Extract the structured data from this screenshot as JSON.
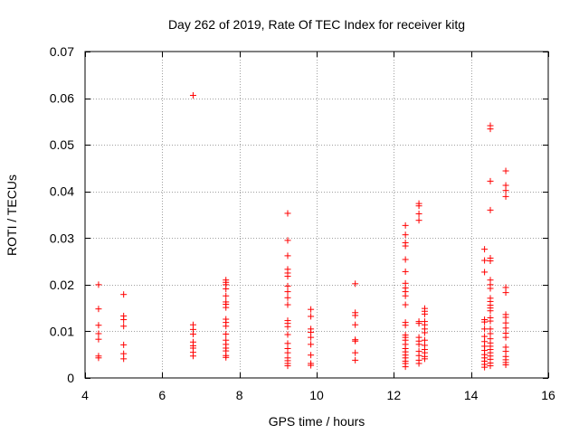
{
  "chart_data": {
    "type": "scatter",
    "title": "Day 262 of 2019, Rate Of TEC Index for receiver kitg",
    "xlabel": "GPS time / hours",
    "ylabel": "ROTI / TECUs",
    "xlim": [
      4,
      16
    ],
    "ylim": [
      0,
      0.07
    ],
    "xticks": [
      4,
      6,
      8,
      10,
      12,
      14,
      16
    ],
    "yticks": [
      0,
      0.01,
      0.02,
      0.03,
      0.04,
      0.05,
      0.06,
      0.07
    ],
    "xtick_labels": [
      "4",
      "6",
      "8",
      "10",
      "12",
      "14",
      "16"
    ],
    "ytick_labels": [
      "0",
      "0.01",
      "0.02",
      "0.03",
      "0.04",
      "0.05",
      "0.06",
      "0.07"
    ],
    "grid": true,
    "marker": "+",
    "color": "#ff0000",
    "series": [
      {
        "name": "ROTI",
        "points": [
          [
            4.35,
            0.02
          ],
          [
            4.35,
            0.0148
          ],
          [
            4.35,
            0.0113
          ],
          [
            4.35,
            0.0095
          ],
          [
            4.35,
            0.0083
          ],
          [
            4.35,
            0.0047
          ],
          [
            4.35,
            0.0043
          ],
          [
            5.0,
            0.0179
          ],
          [
            5.0,
            0.0133
          ],
          [
            5.0,
            0.0125
          ],
          [
            5.0,
            0.0111
          ],
          [
            5.0,
            0.0071
          ],
          [
            5.0,
            0.0052
          ],
          [
            5.0,
            0.0041
          ],
          [
            6.8,
            0.0606
          ],
          [
            6.8,
            0.0114
          ],
          [
            6.8,
            0.0104
          ],
          [
            6.8,
            0.0094
          ],
          [
            6.8,
            0.0077
          ],
          [
            6.8,
            0.0069
          ],
          [
            6.8,
            0.0064
          ],
          [
            6.8,
            0.0055
          ],
          [
            6.8,
            0.0047
          ],
          [
            7.65,
            0.021
          ],
          [
            7.65,
            0.0205
          ],
          [
            7.65,
            0.02
          ],
          [
            7.65,
            0.0191
          ],
          [
            7.65,
            0.0176
          ],
          [
            7.65,
            0.0163
          ],
          [
            7.65,
            0.0158
          ],
          [
            7.65,
            0.0151
          ],
          [
            7.65,
            0.0126
          ],
          [
            7.65,
            0.0119
          ],
          [
            7.65,
            0.0111
          ],
          [
            7.65,
            0.0094
          ],
          [
            7.65,
            0.0081
          ],
          [
            7.65,
            0.0072
          ],
          [
            7.65,
            0.0064
          ],
          [
            7.65,
            0.0058
          ],
          [
            7.65,
            0.0048
          ],
          [
            7.65,
            0.0044
          ],
          [
            9.25,
            0.0353
          ],
          [
            9.25,
            0.0295
          ],
          [
            9.25,
            0.0262
          ],
          [
            9.25,
            0.0233
          ],
          [
            9.25,
            0.0225
          ],
          [
            9.25,
            0.0218
          ],
          [
            9.25,
            0.0197
          ],
          [
            9.25,
            0.0185
          ],
          [
            9.25,
            0.0172
          ],
          [
            9.25,
            0.0157
          ],
          [
            9.25,
            0.0123
          ],
          [
            9.25,
            0.0117
          ],
          [
            9.25,
            0.011
          ],
          [
            9.25,
            0.0093
          ],
          [
            9.25,
            0.0074
          ],
          [
            9.25,
            0.0063
          ],
          [
            9.25,
            0.0054
          ],
          [
            9.25,
            0.0043
          ],
          [
            9.25,
            0.0037
          ],
          [
            9.25,
            0.0031
          ],
          [
            9.25,
            0.0026
          ],
          [
            9.85,
            0.0147
          ],
          [
            9.85,
            0.0132
          ],
          [
            9.85,
            0.0105
          ],
          [
            9.85,
            0.0098
          ],
          [
            9.85,
            0.0087
          ],
          [
            9.85,
            0.0072
          ],
          [
            9.85,
            0.0049
          ],
          [
            9.85,
            0.0031
          ],
          [
            9.85,
            0.0027
          ],
          [
            11.0,
            0.0202
          ],
          [
            11.0,
            0.014
          ],
          [
            11.0,
            0.0134
          ],
          [
            11.0,
            0.0114
          ],
          [
            11.0,
            0.0082
          ],
          [
            11.0,
            0.0079
          ],
          [
            11.0,
            0.0054
          ],
          [
            11.0,
            0.0038
          ],
          [
            12.3,
            0.0327
          ],
          [
            12.3,
            0.0307
          ],
          [
            12.3,
            0.029
          ],
          [
            12.3,
            0.0283
          ],
          [
            12.3,
            0.0254
          ],
          [
            12.3,
            0.0228
          ],
          [
            12.3,
            0.0203
          ],
          [
            12.3,
            0.0193
          ],
          [
            12.3,
            0.0185
          ],
          [
            12.3,
            0.0176
          ],
          [
            12.3,
            0.0157
          ],
          [
            12.3,
            0.0119
          ],
          [
            12.3,
            0.0113
          ],
          [
            12.3,
            0.0092
          ],
          [
            12.3,
            0.0087
          ],
          [
            12.3,
            0.0081
          ],
          [
            12.3,
            0.0072
          ],
          [
            12.3,
            0.0063
          ],
          [
            12.3,
            0.0056
          ],
          [
            12.3,
            0.0049
          ],
          [
            12.3,
            0.0043
          ],
          [
            12.3,
            0.0036
          ],
          [
            12.3,
            0.0031
          ],
          [
            12.3,
            0.0024
          ],
          [
            12.65,
            0.0374
          ],
          [
            12.65,
            0.0369
          ],
          [
            12.65,
            0.0352
          ],
          [
            12.65,
            0.0338
          ],
          [
            12.65,
            0.0121
          ],
          [
            12.65,
            0.0117
          ],
          [
            12.65,
            0.0087
          ],
          [
            12.65,
            0.0079
          ],
          [
            12.65,
            0.0072
          ],
          [
            12.65,
            0.0057
          ],
          [
            12.65,
            0.0048
          ],
          [
            12.65,
            0.0038
          ],
          [
            12.65,
            0.0031
          ],
          [
            12.8,
            0.0149
          ],
          [
            12.8,
            0.0143
          ],
          [
            12.8,
            0.0137
          ],
          [
            12.8,
            0.0121
          ],
          [
            12.8,
            0.0114
          ],
          [
            12.8,
            0.0105
          ],
          [
            12.8,
            0.0097
          ],
          [
            12.8,
            0.0081
          ],
          [
            12.8,
            0.007
          ],
          [
            12.8,
            0.0061
          ],
          [
            12.8,
            0.0054
          ],
          [
            12.8,
            0.0046
          ],
          [
            12.8,
            0.0041
          ],
          [
            14.35,
            0.0276
          ],
          [
            14.35,
            0.0252
          ],
          [
            14.35,
            0.0227
          ],
          [
            14.35,
            0.0125
          ],
          [
            14.35,
            0.012
          ],
          [
            14.35,
            0.0105
          ],
          [
            14.35,
            0.0089
          ],
          [
            14.35,
            0.0078
          ],
          [
            14.35,
            0.0068
          ],
          [
            14.35,
            0.0059
          ],
          [
            14.35,
            0.005
          ],
          [
            14.35,
            0.0043
          ],
          [
            14.35,
            0.0036
          ],
          [
            14.35,
            0.0029
          ],
          [
            14.35,
            0.0023
          ],
          [
            14.5,
            0.0541
          ],
          [
            14.5,
            0.0534
          ],
          [
            14.5,
            0.0422
          ],
          [
            14.5,
            0.036
          ],
          [
            14.5,
            0.0257
          ],
          [
            14.5,
            0.0251
          ],
          [
            14.5,
            0.021
          ],
          [
            14.5,
            0.02
          ],
          [
            14.5,
            0.0192
          ],
          [
            14.5,
            0.0171
          ],
          [
            14.5,
            0.0164
          ],
          [
            14.5,
            0.0156
          ],
          [
            14.5,
            0.015
          ],
          [
            14.5,
            0.0144
          ],
          [
            14.5,
            0.0129
          ],
          [
            14.5,
            0.0122
          ],
          [
            14.5,
            0.0105
          ],
          [
            14.5,
            0.0095
          ],
          [
            14.5,
            0.0084
          ],
          [
            14.5,
            0.0075
          ],
          [
            14.5,
            0.0068
          ],
          [
            14.5,
            0.0061
          ],
          [
            14.5,
            0.0054
          ],
          [
            14.5,
            0.0047
          ],
          [
            14.5,
            0.004
          ],
          [
            14.5,
            0.0032
          ],
          [
            14.5,
            0.0026
          ],
          [
            14.9,
            0.0444
          ],
          [
            14.9,
            0.0413
          ],
          [
            14.9,
            0.0402
          ],
          [
            14.9,
            0.0389
          ],
          [
            14.9,
            0.0194
          ],
          [
            14.9,
            0.0183
          ],
          [
            14.9,
            0.0136
          ],
          [
            14.9,
            0.013
          ],
          [
            14.9,
            0.0118
          ],
          [
            14.9,
            0.0107
          ],
          [
            14.9,
            0.0096
          ],
          [
            14.9,
            0.0087
          ],
          [
            14.9,
            0.0066
          ],
          [
            14.9,
            0.0057
          ],
          [
            14.9,
            0.0046
          ],
          [
            14.9,
            0.0039
          ],
          [
            14.9,
            0.0033
          ],
          [
            14.9,
            0.0028
          ]
        ]
      }
    ]
  }
}
